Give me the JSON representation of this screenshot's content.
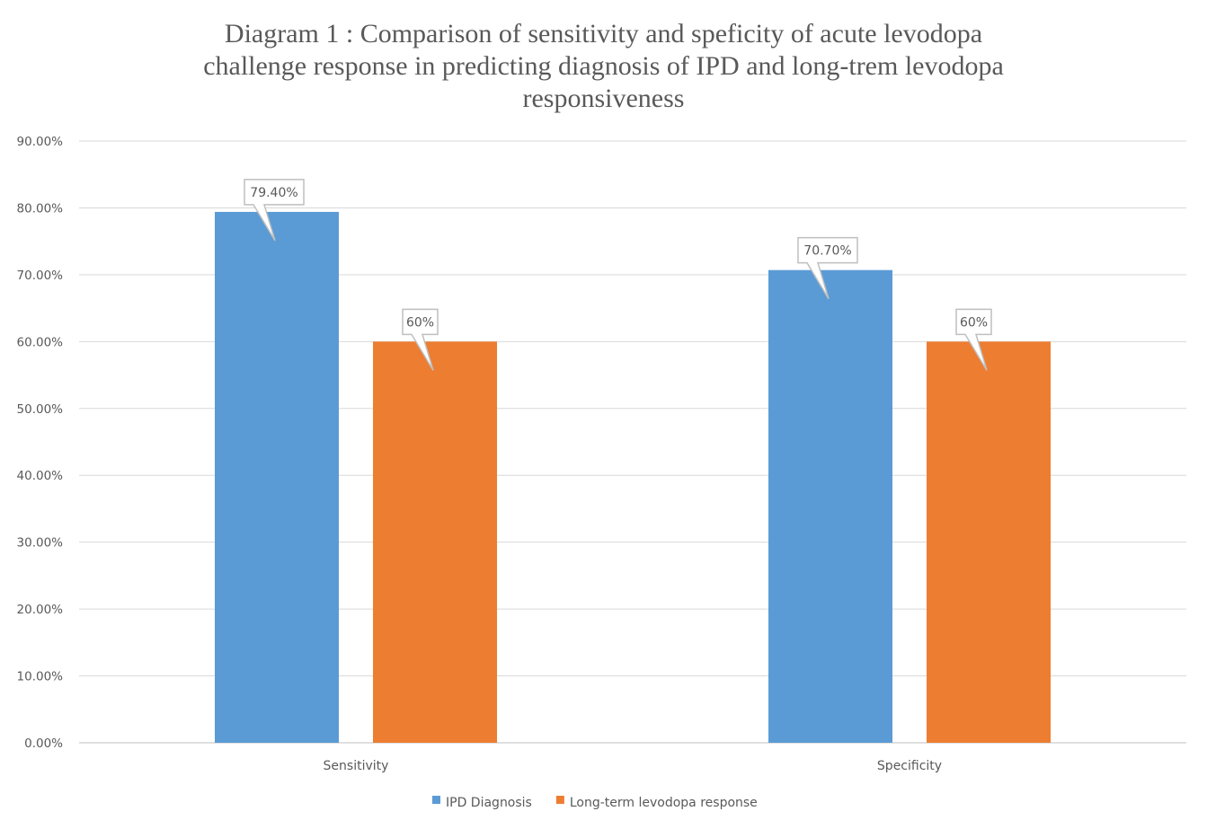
{
  "chart_data": {
    "type": "bar",
    "title_lines": [
      "Diagram 1 : Comparison of sensitivity and speficity of acute levodopa",
      "challenge response in predicting diagnosis of IPD and long-trem levodopa",
      "responsiveness"
    ],
    "categories": [
      "Sensitivity",
      "Specificity"
    ],
    "series": [
      {
        "name": "IPD Diagnosis",
        "values": [
          79.4,
          70.7
        ],
        "labels": [
          "79.40%",
          "70.70%"
        ],
        "color": "#5b9bd5"
      },
      {
        "name": "Long-term levodopa response",
        "values": [
          60,
          60
        ],
        "labels": [
          "60%",
          "60%"
        ],
        "color": "#ed7d31"
      }
    ],
    "ylim": [
      0,
      90
    ],
    "yticks": [
      0,
      10,
      20,
      30,
      40,
      50,
      60,
      70,
      80,
      90
    ],
    "ytick_labels": [
      "0.00%",
      "10.00%",
      "20.00%",
      "30.00%",
      "40.00%",
      "50.00%",
      "60.00%",
      "70.00%",
      "80.00%",
      "90.00%"
    ],
    "grid": true,
    "legend_position": "bottom",
    "xlabel": "",
    "ylabel": ""
  }
}
